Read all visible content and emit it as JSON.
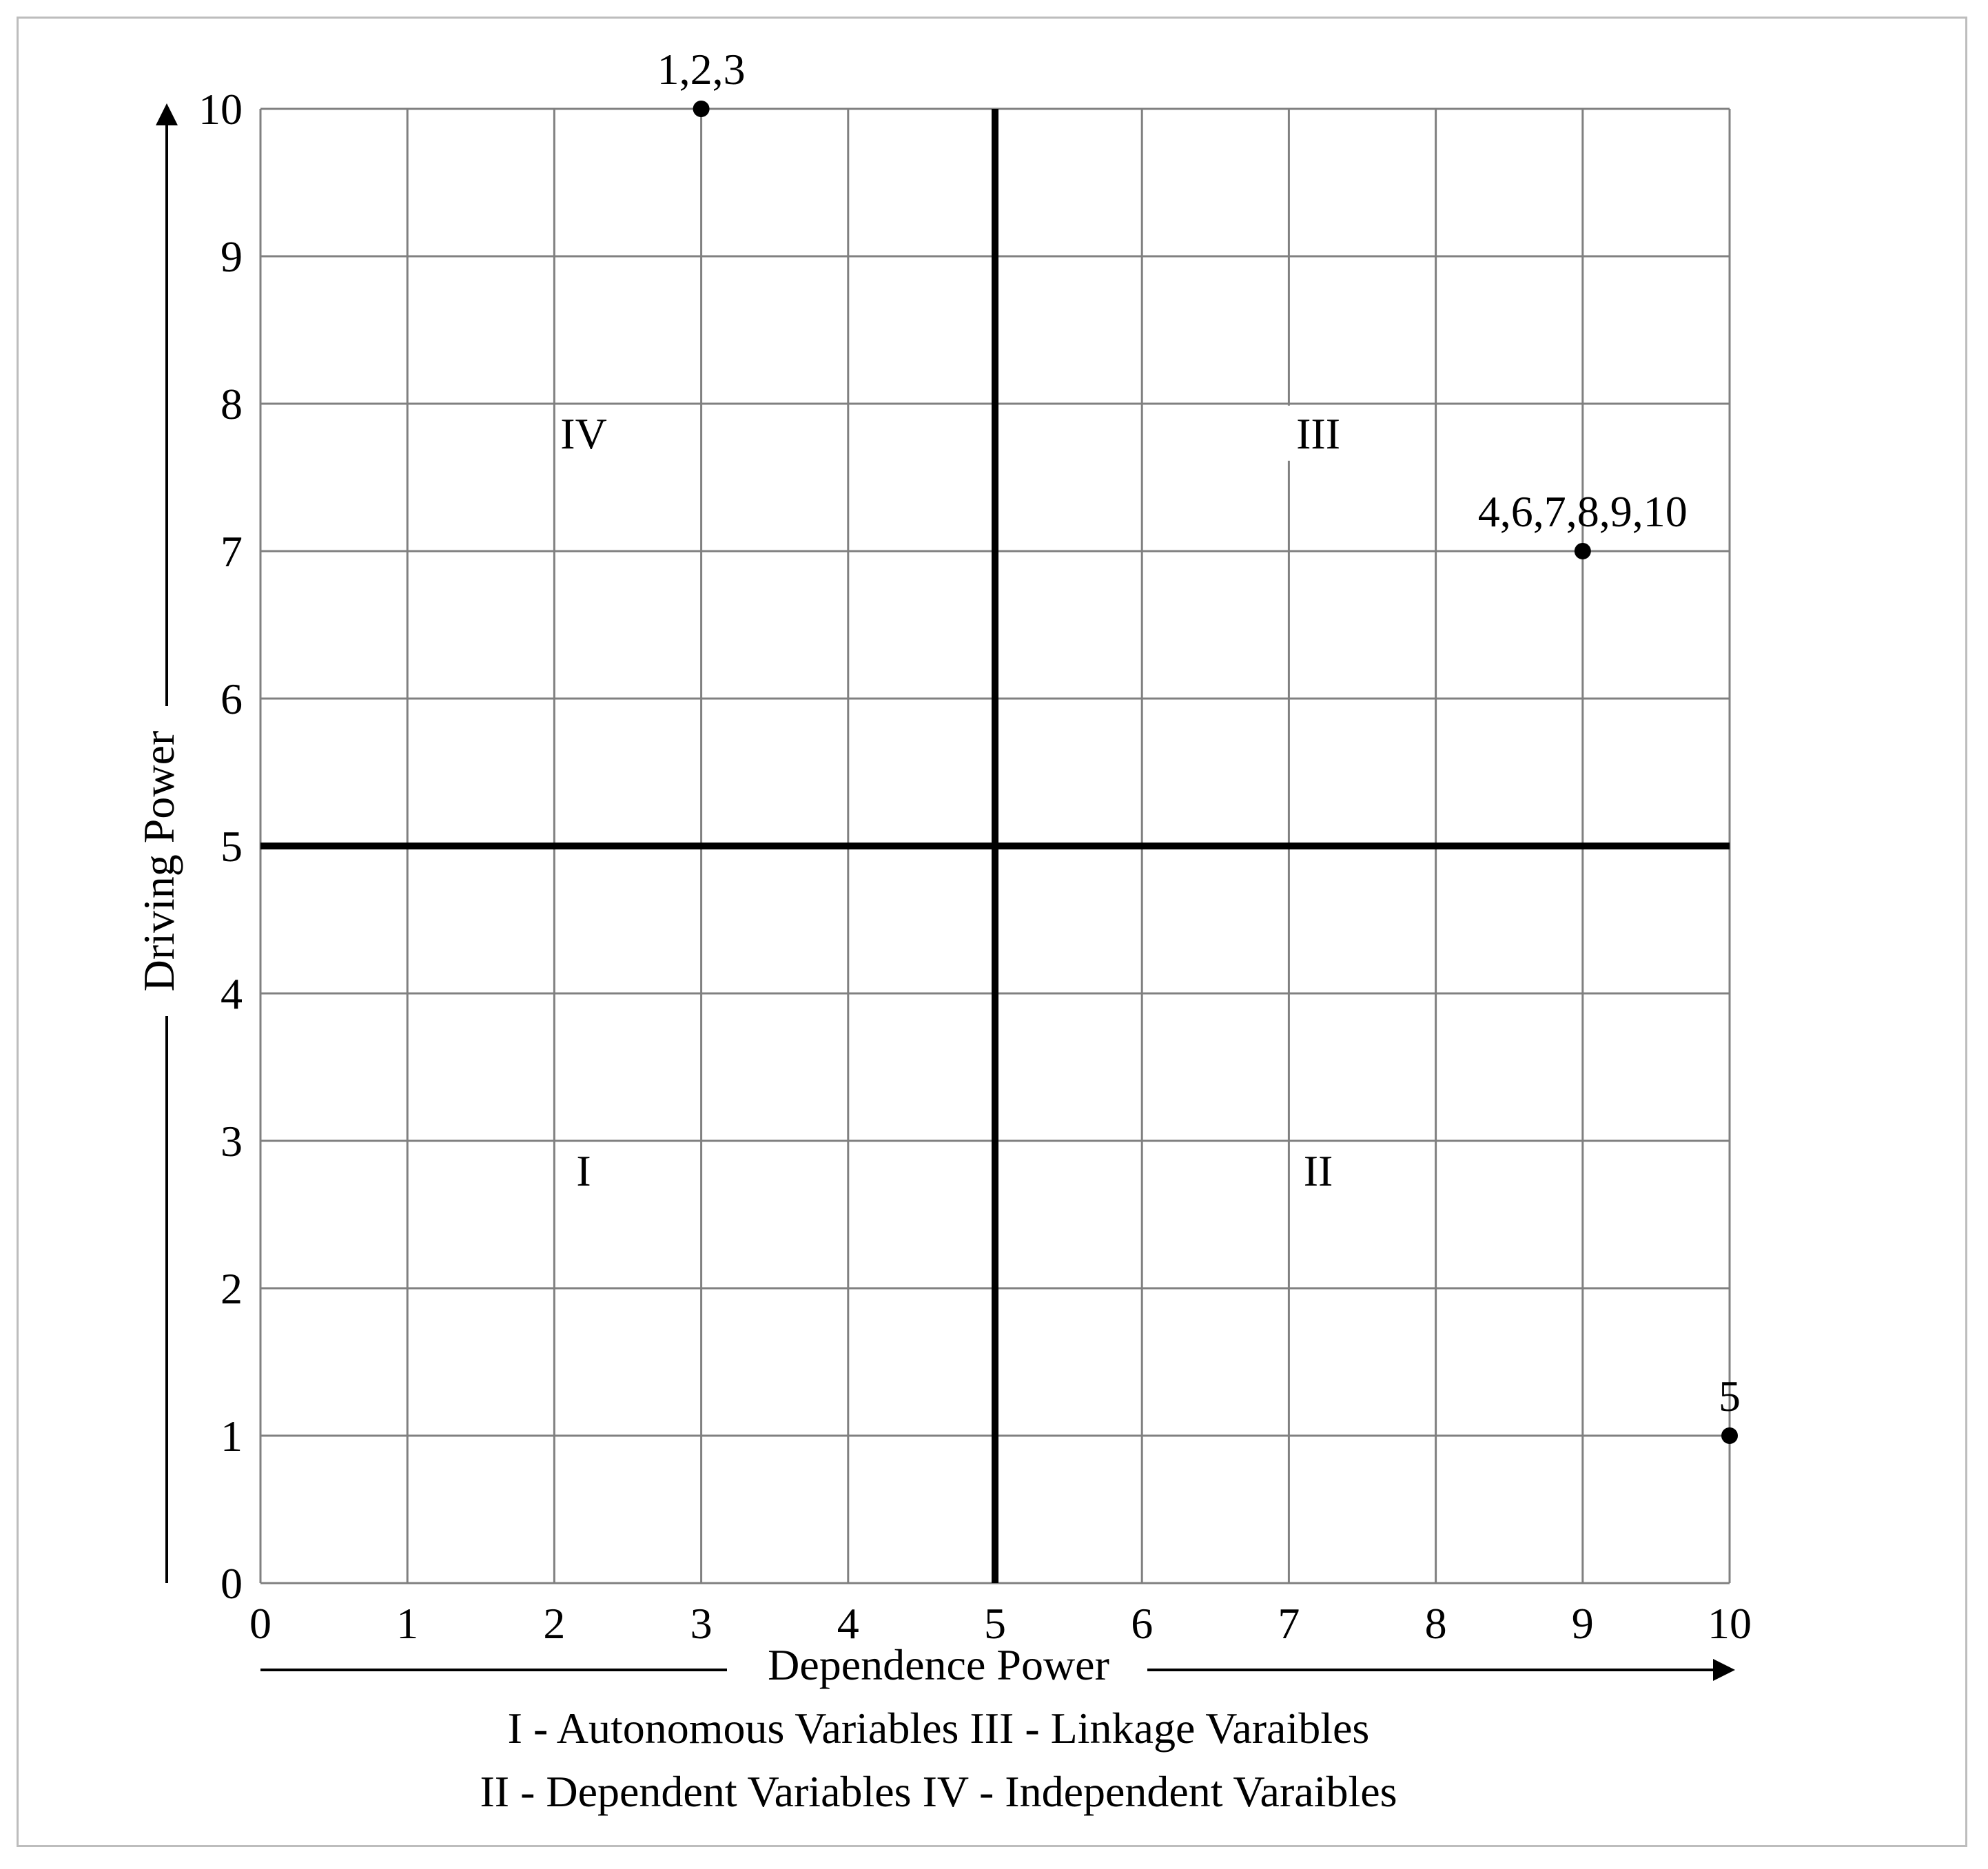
{
  "chart_data": {
    "type": "scatter",
    "xlabel": "Dependence Power",
    "ylabel": "Driving Power",
    "xlim": [
      0,
      10
    ],
    "ylim": [
      0,
      10
    ],
    "x_ticks": [
      "0",
      "1",
      "2",
      "3",
      "4",
      "5",
      "6",
      "7",
      "8",
      "9",
      "10"
    ],
    "y_ticks": [
      "0",
      "1",
      "2",
      "3",
      "4",
      "5",
      "6",
      "7",
      "8",
      "9",
      "10"
    ],
    "grid": true,
    "divider_lines": {
      "x": 5,
      "y": 5
    },
    "points": [
      {
        "x": 3,
        "y": 10,
        "label": "1,2,3"
      },
      {
        "x": 9,
        "y": 7,
        "label": "4,6,7,8,9,10"
      },
      {
        "x": 10,
        "y": 1,
        "label": "5"
      }
    ],
    "quadrants": [
      {
        "label": "IV",
        "x": 2.2,
        "y": 7.8
      },
      {
        "label": "III",
        "x": 7.2,
        "y": 7.8
      },
      {
        "label": "I",
        "x": 2.2,
        "y": 2.8
      },
      {
        "label": "II",
        "x": 7.2,
        "y": 2.8
      }
    ],
    "legend_lines": [
      "I - Autonomous Variables III - Linkage Varaibles",
      "II - Dependent Variables IV - Independent Varaibles"
    ],
    "colors": {
      "grid": "#808080",
      "axis": "#000000",
      "point": "#000000"
    }
  }
}
